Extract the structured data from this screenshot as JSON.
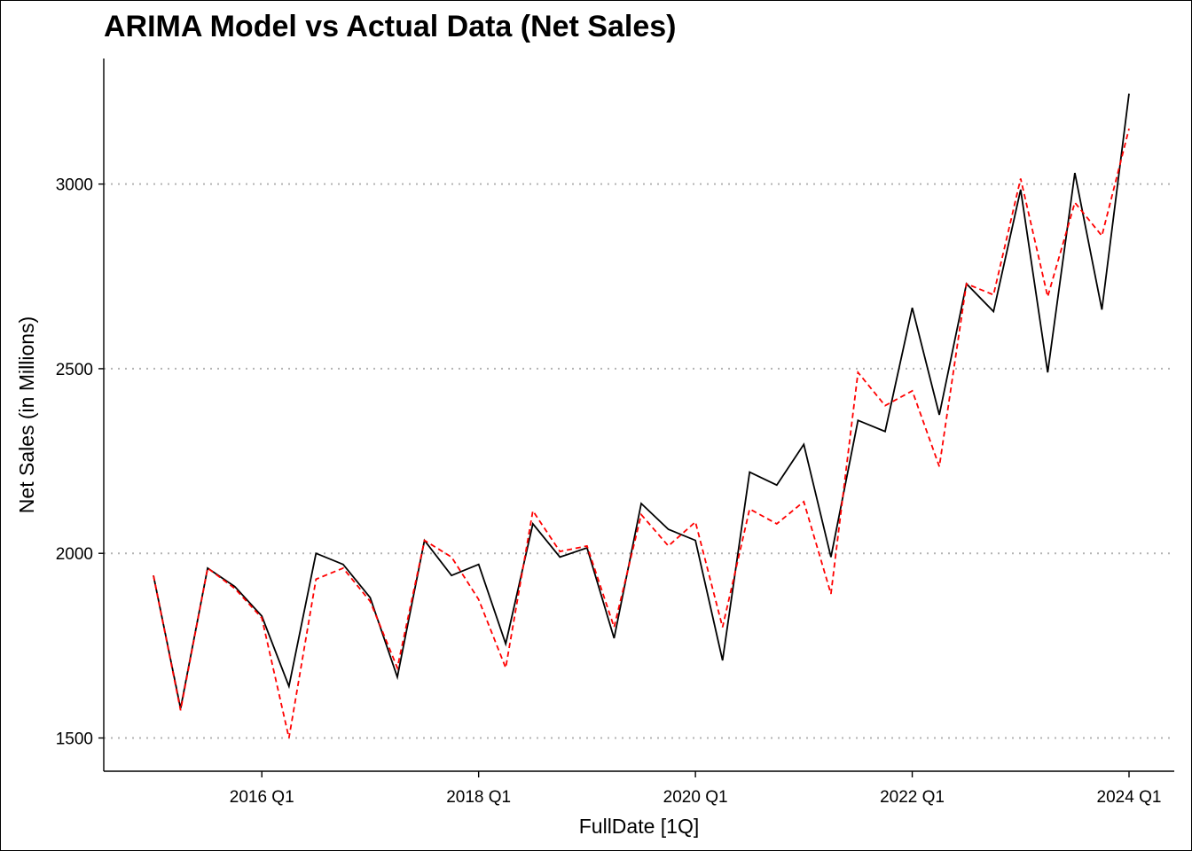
{
  "chart_data": {
    "type": "line",
    "title": "ARIMA Model vs Actual Data (Net Sales)",
    "xlabel": "FullDate [1Q]",
    "ylabel": "Net Sales (in Millions)",
    "x": [
      "2015 Q1",
      "2015 Q2",
      "2015 Q3",
      "2015 Q4",
      "2016 Q1",
      "2016 Q2",
      "2016 Q3",
      "2016 Q4",
      "2017 Q1",
      "2017 Q2",
      "2017 Q3",
      "2017 Q4",
      "2018 Q1",
      "2018 Q2",
      "2018 Q3",
      "2018 Q4",
      "2019 Q1",
      "2019 Q2",
      "2019 Q3",
      "2019 Q4",
      "2020 Q1",
      "2020 Q2",
      "2020 Q3",
      "2020 Q4",
      "2021 Q1",
      "2021 Q2",
      "2021 Q3",
      "2021 Q4",
      "2022 Q1",
      "2022 Q2",
      "2022 Q3",
      "2022 Q4",
      "2023 Q1",
      "2023 Q2",
      "2023 Q3",
      "2023 Q4",
      "2024 Q1"
    ],
    "xticks": [
      "2016 Q1",
      "2018 Q1",
      "2020 Q1",
      "2022 Q1",
      "2024 Q1"
    ],
    "yticks": [
      1500,
      2000,
      2500,
      3000
    ],
    "ylim": [
      1410,
      3340
    ],
    "grid": "horizontal dotted major gridlines",
    "legend": "none",
    "series": [
      {
        "role": "actual",
        "color": "#000000",
        "style": "solid",
        "values": [
          1940,
          1580,
          1960,
          1910,
          1830,
          1640,
          2000,
          1970,
          1880,
          1665,
          2035,
          1940,
          1970,
          1755,
          2080,
          1990,
          2015,
          1770,
          2135,
          2065,
          2035,
          1710,
          2220,
          2185,
          2295,
          1990,
          2360,
          2330,
          2665,
          2375,
          2730,
          2655,
          2985,
          2490,
          3030,
          2660,
          3245
        ]
      },
      {
        "role": "fitted",
        "color": "#ff0000",
        "style": "dashed",
        "values": [
          1940,
          1575,
          1960,
          1905,
          1825,
          1500,
          1930,
          1960,
          1870,
          1690,
          2035,
          1990,
          1875,
          1690,
          2115,
          2005,
          2020,
          1800,
          2105,
          2020,
          2085,
          1800,
          2120,
          2080,
          2140,
          1890,
          2490,
          2400,
          2440,
          2235,
          2730,
          2700,
          3015,
          2695,
          2950,
          2860,
          3150
        ]
      }
    ]
  }
}
